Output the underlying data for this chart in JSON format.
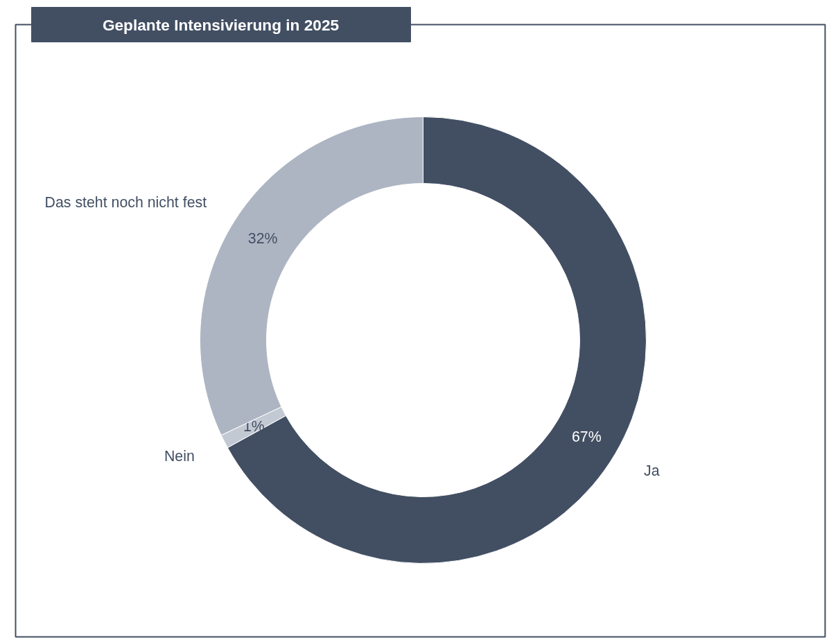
{
  "chart_data": {
    "type": "donut",
    "title": "Geplante Intensivierung in 2025",
    "categories": [
      "Ja",
      "Nein",
      "Das steht noch nicht fest"
    ],
    "values": [
      67,
      1,
      32
    ],
    "colors": [
      "#424f63",
      "#c3c9d3",
      "#adb5c3"
    ],
    "value_labels": [
      "67%",
      "1%",
      "32%"
    ]
  }
}
